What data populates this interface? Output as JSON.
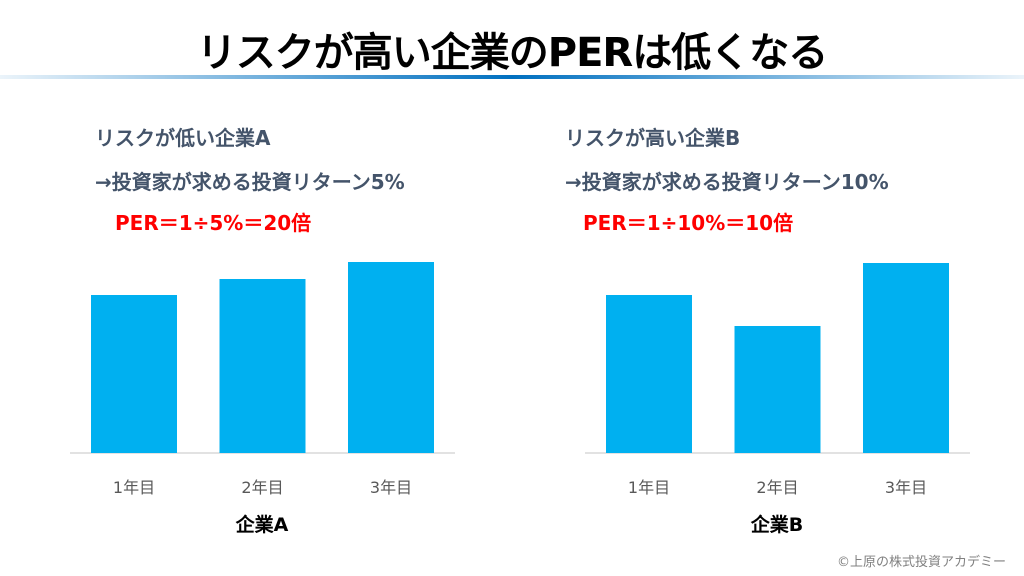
{
  "title": "リスクが高い企業のPERは低くなる",
  "left": {
    "heading": "リスクが低い企業A",
    "return_line": "→投資家が求める投資リターン5%",
    "per_line": "PER＝1÷5%＝20倍"
  },
  "right": {
    "heading": "リスクが高い企業B",
    "return_line": "→投資家が求める投資リターン10%",
    "per_line": "PER＝1÷10%＝10倍"
  },
  "chart_data": [
    {
      "type": "bar",
      "title": "企業A",
      "categories": [
        "1年目",
        "2年目",
        "3年目"
      ],
      "values": [
        158,
        174,
        191
      ],
      "ylim": [
        0,
        200
      ],
      "grid": false,
      "color": "#00b0f0"
    },
    {
      "type": "bar",
      "title": "企業B",
      "categories": [
        "1年目",
        "2年目",
        "3年目"
      ],
      "values": [
        158,
        127,
        190
      ],
      "ylim": [
        0,
        200
      ],
      "grid": false,
      "color": "#00b0f0"
    }
  ],
  "copyright": "©上原の株式投資アカデミー"
}
